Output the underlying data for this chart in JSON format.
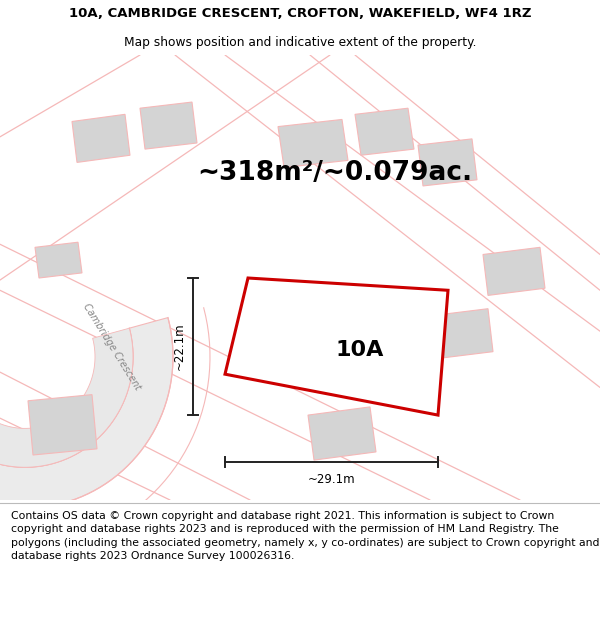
{
  "title_line1": "10A, CAMBRIDGE CRESCENT, CROFTON, WAKEFIELD, WF4 1RZ",
  "title_line2": "Map shows position and indicative extent of the property.",
  "area_text": "~318m²/~0.079ac.",
  "label_10A": "10A",
  "dim_vertical": "~22.1m",
  "dim_horizontal": "~29.1m",
  "street_label": "Cambridge Crescent",
  "footer_text": "Contains OS data © Crown copyright and database right 2021. This information is subject to Crown copyright and database rights 2023 and is reproduced with the permission of HM Land Registry. The polygons (including the associated geometry, namely x, y co-ordinates) are subject to Crown copyright and database rights 2023 Ordnance Survey 100026316.",
  "bg_color": "#ffffff",
  "plot_color_red": "#cc0000",
  "building_fill": "#d4d4d4",
  "road_line_color": "#f5b8b8",
  "road_fill": "#ebebeb",
  "dim_line_color": "#222222",
  "title_fontsize": 9.5,
  "subtitle_fontsize": 8.8,
  "area_fontsize": 19,
  "label_fontsize": 16,
  "street_fontsize": 7.0,
  "footer_fontsize": 7.8,
  "dim_fontsize": 8.5
}
